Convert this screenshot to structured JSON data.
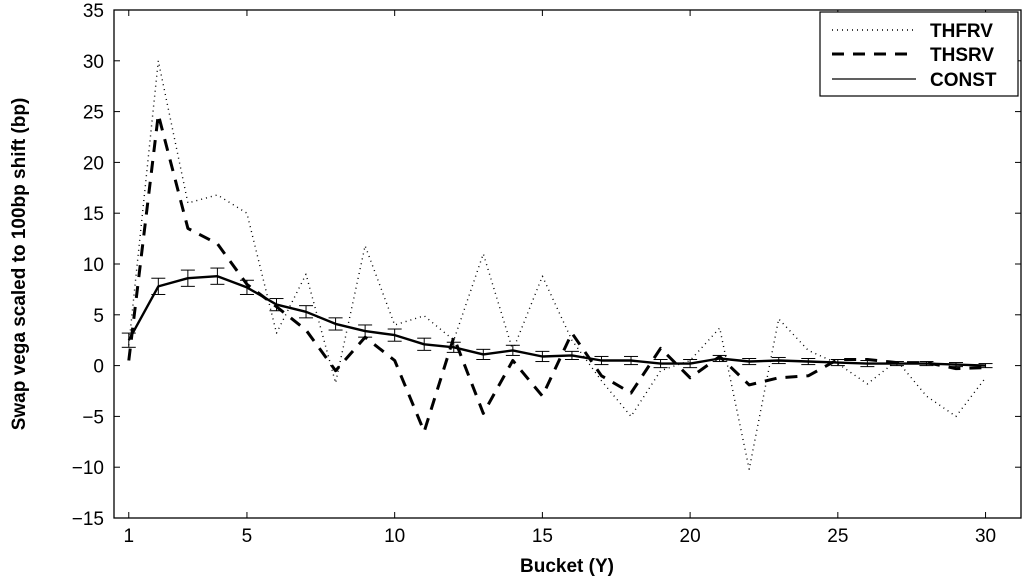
{
  "chart_data": {
    "type": "line",
    "xlabel": "Bucket (Y)",
    "ylabel": "Swap vega scaled to 100bp shift (bp)",
    "xlim": [
      0.5,
      31.2
    ],
    "ylim": [
      -15,
      35
    ],
    "x_ticks": [
      1,
      5,
      10,
      15,
      20,
      25,
      30
    ],
    "y_ticks": [
      -15,
      -10,
      -5,
      0,
      5,
      10,
      15,
      20,
      25,
      30,
      35
    ],
    "grid": false,
    "legend_position": "top-right",
    "x": [
      1,
      2,
      3,
      4,
      5,
      6,
      7,
      8,
      9,
      10,
      11,
      12,
      13,
      14,
      15,
      16,
      17,
      18,
      19,
      20,
      21,
      22,
      23,
      24,
      25,
      26,
      27,
      28,
      29,
      30
    ],
    "series": [
      {
        "name": "THFRV",
        "style": "dotted",
        "values": [
          2.0,
          30.0,
          16.0,
          16.8,
          15.0,
          3.2,
          9.0,
          -1.7,
          11.8,
          4.0,
          4.9,
          2.5,
          11.0,
          1.5,
          8.8,
          2.5,
          -1.5,
          -5.0,
          -0.5,
          0.5,
          3.7,
          -10.2,
          4.6,
          1.5,
          0.2,
          -1.8,
          0.5,
          -3.0,
          -5.0,
          -1.2
        ]
      },
      {
        "name": "THSRV",
        "style": "dashed",
        "values": [
          0.5,
          24.7,
          13.5,
          12.0,
          8.0,
          5.8,
          3.5,
          -0.5,
          2.8,
          0.5,
          -6.5,
          2.8,
          -4.7,
          0.5,
          -3.0,
          3.2,
          -1.0,
          -2.7,
          1.7,
          -1.2,
          0.9,
          -1.9,
          -1.2,
          -1.0,
          0.6,
          0.6,
          0.3,
          0.3,
          -0.3,
          -0.2
        ]
      },
      {
        "name": "CONST",
        "style": "solid",
        "values": [
          2.5,
          7.8,
          8.6,
          8.8,
          7.7,
          6.0,
          5.3,
          4.1,
          3.4,
          3.0,
          2.1,
          1.8,
          1.1,
          1.5,
          0.9,
          1.0,
          0.5,
          0.5,
          0.2,
          0.2,
          0.7,
          0.4,
          0.5,
          0.4,
          0.3,
          0.2,
          0.2,
          0.2,
          0.1,
          0.0
        ],
        "error": [
          0.7,
          0.8,
          0.8,
          0.8,
          0.7,
          0.6,
          0.6,
          0.6,
          0.6,
          0.6,
          0.6,
          0.5,
          0.5,
          0.5,
          0.5,
          0.4,
          0.4,
          0.4,
          0.4,
          0.4,
          0.3,
          0.3,
          0.3,
          0.3,
          0.3,
          0.3,
          0.2,
          0.2,
          0.2,
          0.2
        ]
      }
    ]
  }
}
